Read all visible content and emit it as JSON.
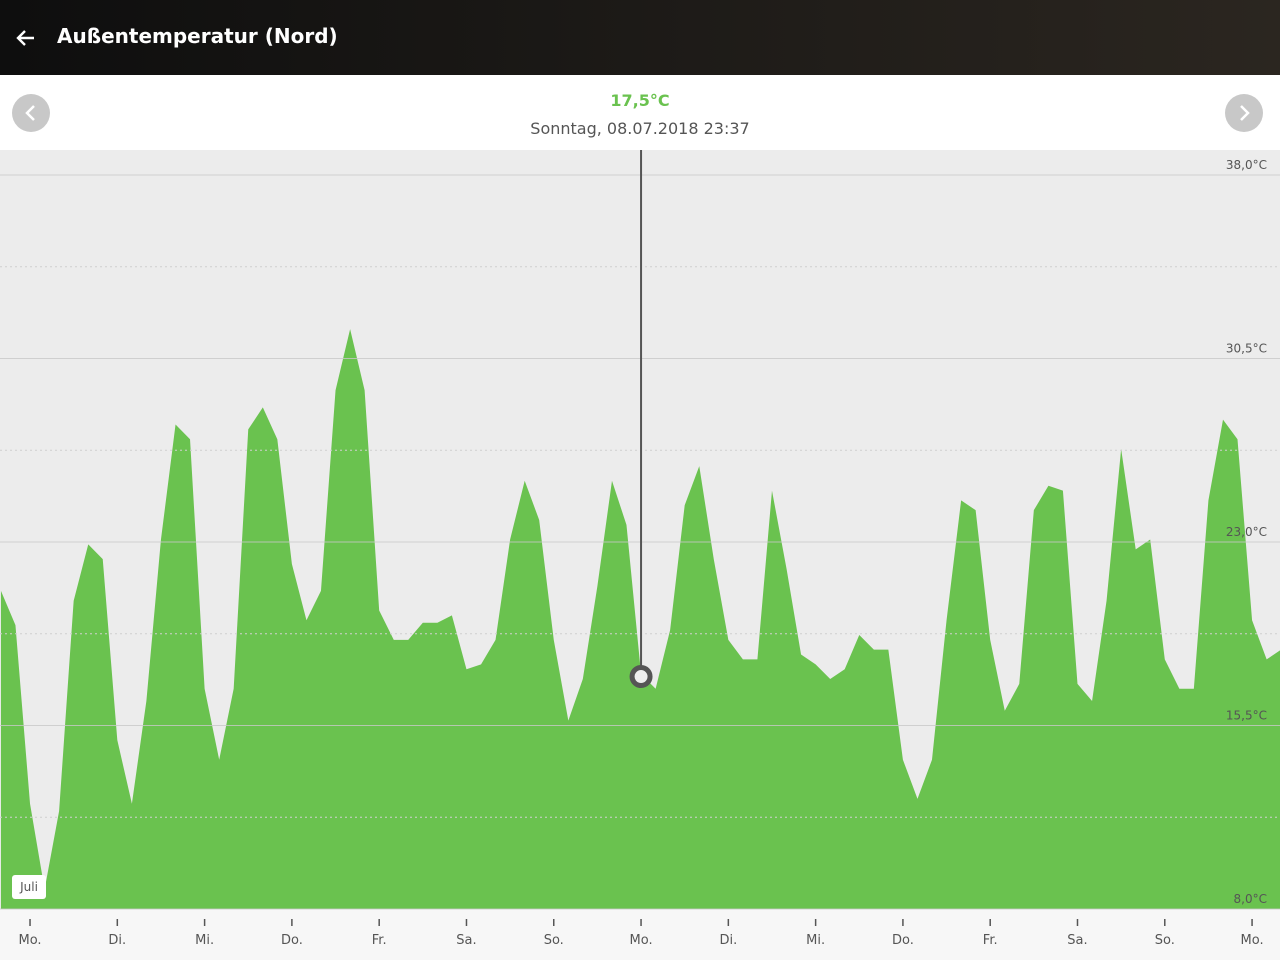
{
  "header": {
    "title": "Außentemperatur (Nord)"
  },
  "chart_data": {
    "type": "area",
    "cursor": {
      "x": 7,
      "value": 17.5,
      "value_label": "17,5°C",
      "date": "Sonntag, 08.07.2018 23:37"
    },
    "annotation": "Juli",
    "color": "#6ac24f",
    "grid": true,
    "xlim": [
      -0.344,
      14.32
    ],
    "ylim": [
      8,
      39.02
    ],
    "yticks": [
      {
        "value": 8,
        "label": "8,0°C"
      },
      {
        "value": 15.5,
        "label": "15,5°C"
      },
      {
        "value": 23,
        "label": "23,0°C"
      },
      {
        "value": 30.5,
        "label": "30,5°C"
      },
      {
        "value": 38,
        "label": "38,0°C"
      }
    ],
    "minor_yticks": [
      11.75,
      19.25,
      26.75,
      34.25
    ],
    "xticks": [
      {
        "value": 0,
        "label": "Mo."
      },
      {
        "value": 1,
        "label": "Di."
      },
      {
        "value": 2,
        "label": "Mi."
      },
      {
        "value": 3,
        "label": "Do."
      },
      {
        "value": 4,
        "label": "Fr."
      },
      {
        "value": 5,
        "label": "Sa."
      },
      {
        "value": 6,
        "label": "So."
      },
      {
        "value": 7,
        "label": "Mo."
      },
      {
        "value": 8,
        "label": "Di."
      },
      {
        "value": 9,
        "label": "Mi."
      },
      {
        "value": 10,
        "label": "Do."
      },
      {
        "value": 11,
        "label": "Fr."
      },
      {
        "value": 12,
        "label": "Sa."
      },
      {
        "value": 13,
        "label": "So."
      },
      {
        "value": 14,
        "label": "Mo."
      }
    ],
    "x": [
      -0.333,
      -0.167,
      0,
      0.167,
      0.333,
      0.5,
      0.667,
      0.833,
      1,
      1.167,
      1.333,
      1.5,
      1.667,
      1.833,
      2,
      2.167,
      2.333,
      2.5,
      2.667,
      2.833,
      3,
      3.167,
      3.333,
      3.5,
      3.667,
      3.833,
      4,
      4.167,
      4.333,
      4.5,
      4.667,
      4.833,
      5,
      5.167,
      5.333,
      5.5,
      5.667,
      5.833,
      6,
      6.167,
      6.333,
      6.5,
      6.667,
      6.833,
      7,
      7.167,
      7.333,
      7.5,
      7.667,
      7.833,
      8,
      8.167,
      8.333,
      8.5,
      8.667,
      8.833,
      9,
      9.167,
      9.333,
      9.5,
      9.667,
      9.833,
      10,
      10.167,
      10.333,
      10.5,
      10.667,
      10.833,
      11,
      11.167,
      11.333,
      11.5,
      11.667,
      11.833,
      12,
      12.167,
      12.333,
      12.5,
      12.667,
      12.833,
      13,
      13.167,
      13.333,
      13.5,
      13.667,
      13.833,
      14,
      14.167,
      14.333
    ],
    "values": [
      21.0,
      19.6,
      12.3,
      8.8,
      12.0,
      20.6,
      22.9,
      22.3,
      14.9,
      12.3,
      16.5,
      23.1,
      27.8,
      27.2,
      17.0,
      14.1,
      17.0,
      27.6,
      28.5,
      27.2,
      22.1,
      19.8,
      21.0,
      29.2,
      31.7,
      29.2,
      20.2,
      19.0,
      19.0,
      19.7,
      19.7,
      20.0,
      17.8,
      18.0,
      19.0,
      23.1,
      25.5,
      23.9,
      19.0,
      15.7,
      17.4,
      21.2,
      25.5,
      23.7,
      17.6,
      17.0,
      19.4,
      24.5,
      26.1,
      22.3,
      19.0,
      18.2,
      18.2,
      25.1,
      21.9,
      18.4,
      18.0,
      17.4,
      17.8,
      19.2,
      18.6,
      18.6,
      14.1,
      12.5,
      14.1,
      19.8,
      24.7,
      24.3,
      19.0,
      16.1,
      17.2,
      24.3,
      25.3,
      25.1,
      17.2,
      16.5,
      20.6,
      26.8,
      22.7,
      23.1,
      18.2,
      17.0,
      17.0,
      24.7,
      28.0,
      27.2,
      19.8,
      18.2,
      18.6
    ]
  }
}
